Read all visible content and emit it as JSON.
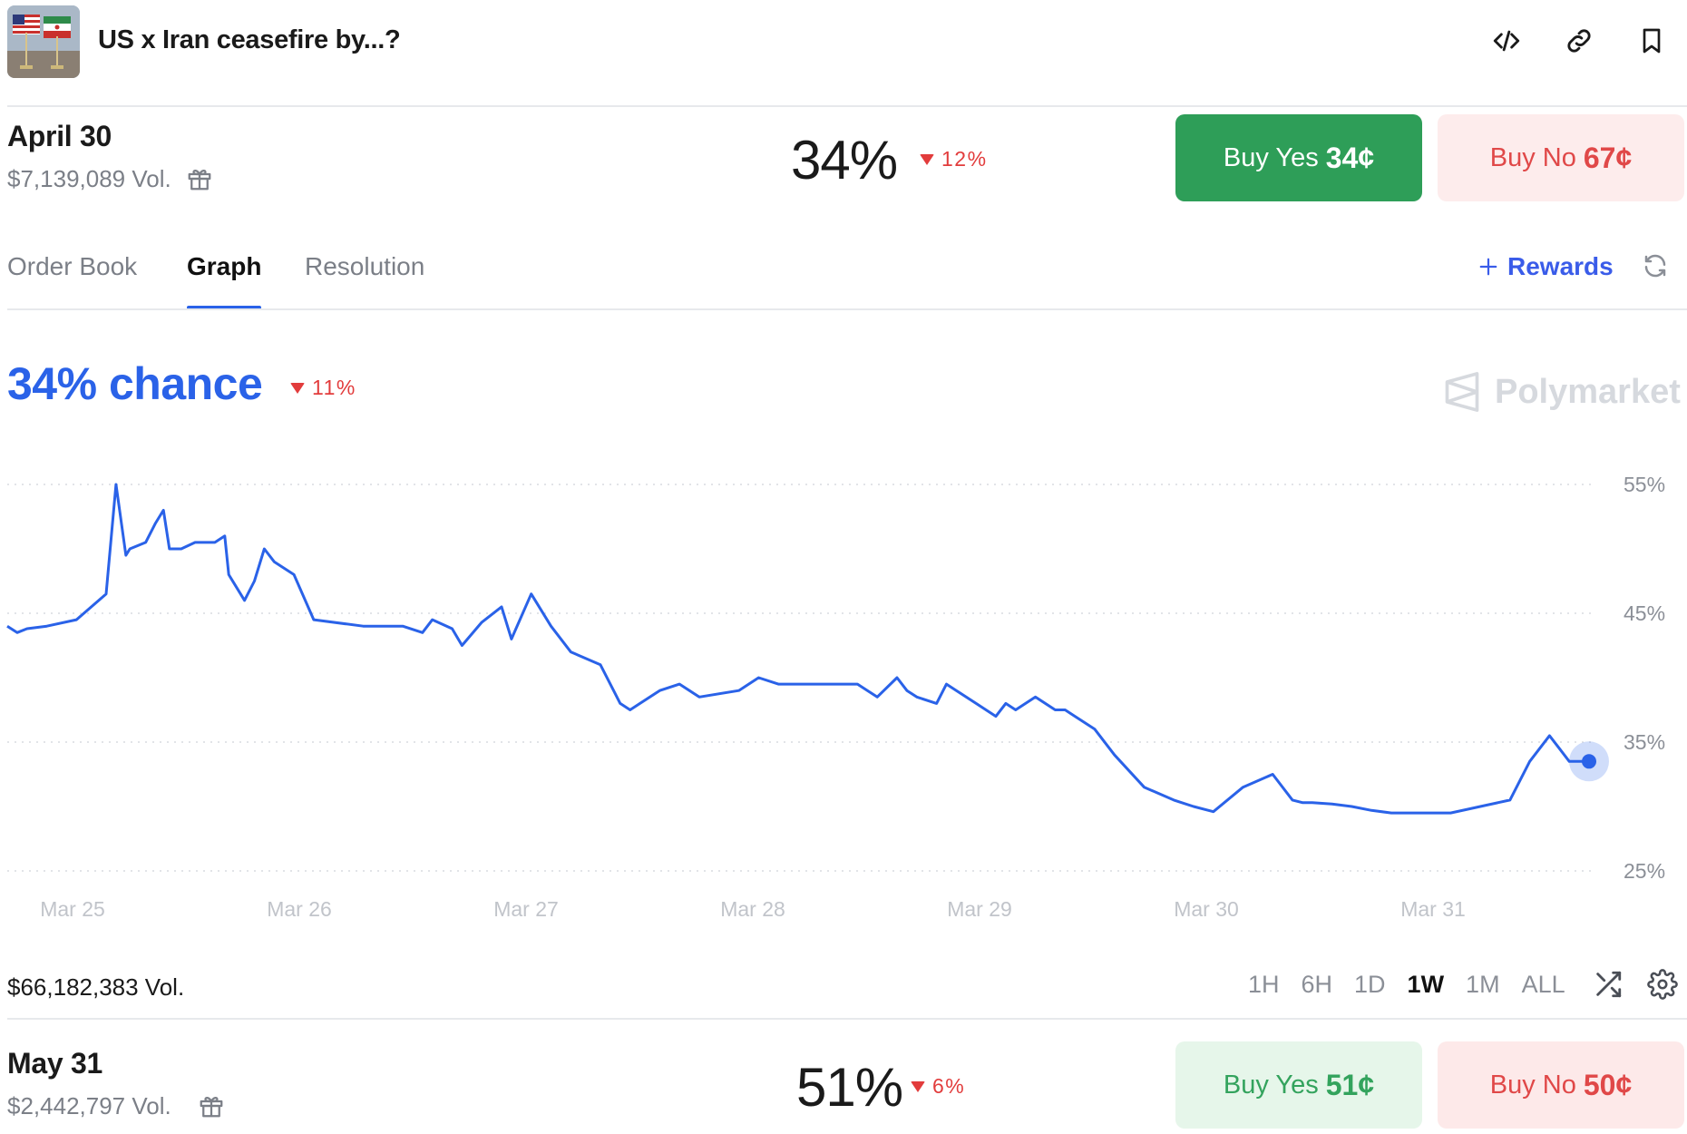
{
  "header": {
    "title": "US x Iran ceasefire by...?",
    "icons": [
      "embed-code-icon",
      "link-icon",
      "bookmark-icon"
    ]
  },
  "markets": [
    {
      "date": "April 30",
      "volume": "$7,139,089 Vol.",
      "probability": "34%",
      "change": "12%",
      "buy_yes_label": "Buy Yes",
      "buy_yes_price": "34¢",
      "buy_no_label": "Buy No",
      "buy_no_price": "67¢"
    },
    {
      "date": "May 31",
      "volume": "$2,442,797 Vol.",
      "probability": "51%",
      "change": "6%",
      "buy_yes_label": "Buy Yes",
      "buy_yes_price": "51¢",
      "buy_no_label": "Buy No",
      "buy_no_price": "50¢"
    }
  ],
  "tabs": {
    "order_book": "Order Book",
    "graph": "Graph",
    "resolution": "Resolution",
    "active": "Graph",
    "rewards": "Rewards"
  },
  "graph": {
    "chance_label": "34% chance",
    "chance_change": "11%",
    "brand": "Polymarket",
    "total_volume": "$66,182,383 Vol.",
    "ranges": [
      "1H",
      "6H",
      "1D",
      "1W",
      "1M",
      "ALL"
    ],
    "active_range": "1W"
  },
  "colors": {
    "accent_blue": "#2a62e8",
    "yes_green": "#2e9e58",
    "no_red": "#e04848",
    "down_red": "#e23c3c"
  },
  "chart_data": {
    "type": "line",
    "x_ticks": [
      "Mar 25",
      "Mar 26",
      "Mar 27",
      "Mar 28",
      "Mar 29",
      "Mar 30",
      "Mar 31"
    ],
    "y_ticks": [
      "55%",
      "45%",
      "35%",
      "25%"
    ],
    "ylim": [
      25,
      55
    ],
    "grid": true,
    "series": [
      {
        "values_x_days": [
          0.0,
          0.05,
          0.1,
          0.2,
          0.35,
          0.5,
          0.55,
          0.6,
          0.62,
          0.7,
          0.75,
          0.79,
          0.82,
          0.88,
          0.95,
          1.0,
          1.05,
          1.1,
          1.12,
          1.2,
          1.25,
          1.3,
          1.35,
          1.45,
          1.55,
          1.8,
          2.0,
          2.1,
          2.15,
          2.25,
          2.3,
          2.4,
          2.5,
          2.55,
          2.65,
          2.75,
          2.85,
          3.0,
          3.1,
          3.15,
          3.2,
          3.3,
          3.4,
          3.5,
          3.7,
          3.8,
          3.9,
          4.0,
          4.1,
          4.2,
          4.3,
          4.4,
          4.5,
          4.55,
          4.6,
          4.7,
          4.75,
          4.8,
          4.9,
          5.0,
          5.05,
          5.1,
          5.2,
          5.3,
          5.35,
          5.4,
          5.5,
          5.6,
          5.75,
          5.9,
          6.0,
          6.1,
          6.25,
          6.4,
          6.5,
          6.55,
          6.6,
          6.7,
          6.8,
          6.9,
          7.0,
          7.15,
          7.3,
          7.45,
          7.6,
          7.7,
          7.8,
          7.85,
          7.9,
          8.0
        ],
        "values": [
          44,
          43.5,
          43.8,
          44,
          44.5,
          46.5,
          55,
          49.5,
          50,
          50.5,
          52,
          53,
          50,
          50,
          50.5,
          50.5,
          50.5,
          51,
          48,
          46,
          47.5,
          50,
          49,
          48,
          44.5,
          44,
          44,
          43.5,
          44.5,
          43.8,
          42.5,
          44.3,
          45.5,
          43,
          46.5,
          44,
          42,
          41,
          38,
          37.5,
          38,
          39,
          39.5,
          38.5,
          39,
          40,
          39.5,
          39.5,
          39.5,
          39.5,
          39.5,
          38.5,
          40,
          39,
          38.5,
          38,
          39.5,
          39,
          38,
          37,
          38,
          37.5,
          38.5,
          37.5,
          37.5,
          37,
          36,
          34,
          31.5,
          30.5,
          30,
          29.6,
          31.5,
          32.5,
          30.5,
          30.3,
          30.3,
          30.2,
          30,
          29.7,
          29.5,
          29.5,
          29.5,
          30,
          30.5,
          33.5,
          35.5,
          34.5,
          33.5,
          33.5
        ]
      }
    ]
  }
}
